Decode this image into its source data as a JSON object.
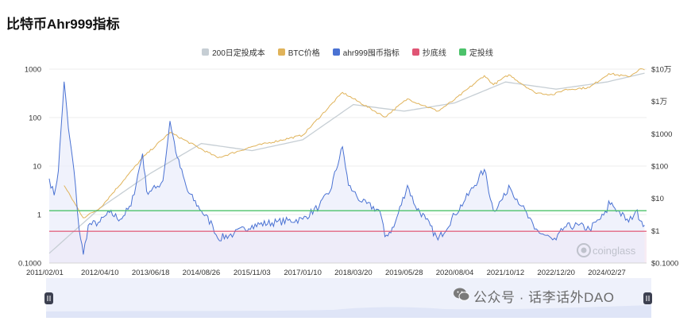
{
  "page": {
    "title": "比特币Ahr999指标"
  },
  "legend": [
    {
      "label": "200日定投成本",
      "color": "#c6ced4"
    },
    {
      "label": "BTC价格",
      "color": "#e0b35a"
    },
    {
      "label": "ahr999囤币指标",
      "color": "#4a72d3"
    },
    {
      "label": "抄底线",
      "color": "#e05575"
    },
    {
      "label": "定投线",
      "color": "#4cc26a"
    }
  ],
  "watermark": {
    "text": "公众号 · 话李话外DAO",
    "logo": "coinglass"
  },
  "colors": {
    "ahr": "#4a72d3",
    "ahr_fill": "#e9ecfb",
    "btc": "#e0b35a",
    "cost": "#c6ced4",
    "bottom": "#e05575",
    "dca": "#4cc26a",
    "bottom_band": "#f8ecf4",
    "navigator": "#eef1fb"
  },
  "chart_data": {
    "type": "line",
    "x_tick_labels": [
      "2011/02/01",
      "2012/04/10",
      "2013/06/18",
      "2014/08/26",
      "2015/11/03",
      "2017/01/10",
      "2018/03/20",
      "2019/05/28",
      "2020/08/04",
      "2021/10/12",
      "2022/12/20",
      "2024/02/27"
    ],
    "y_left": {
      "scale": "log",
      "range": [
        0.1,
        1000
      ],
      "tick_labels": [
        "0.1000",
        "1",
        "10",
        "100",
        "1000"
      ]
    },
    "y_right": {
      "scale": "log",
      "range": [
        0.1,
        100000
      ],
      "tick_labels": [
        "$0.1000",
        "$1",
        "$10",
        "$100",
        "$1000",
        "$1万",
        "$10万"
      ]
    },
    "reference_lines": {
      "抄底线": 0.45,
      "定投线": 1.2
    },
    "series": [
      {
        "name": "ahr999囤币指标",
        "axis": "left",
        "points": [
          [
            "2011/02/01",
            5.5
          ],
          [
            "2011/03/15",
            2.5
          ],
          [
            "2011/04/20",
            8
          ],
          [
            "2011/06/08",
            550
          ],
          [
            "2011/07/15",
            60
          ],
          [
            "2011/09/01",
            8
          ],
          [
            "2011/10/15",
            0.5
          ],
          [
            "2011/11/20",
            0.15
          ],
          [
            "2012/01/01",
            0.6
          ],
          [
            "2012/04/10",
            0.7
          ],
          [
            "2012/07/01",
            1.1
          ],
          [
            "2012/10/01",
            0.8
          ],
          [
            "2013/01/01",
            1.5
          ],
          [
            "2013/04/10",
            18
          ],
          [
            "2013/05/15",
            3
          ],
          [
            "2013/08/01",
            3.5
          ],
          [
            "2013/10/01",
            5
          ],
          [
            "2013/12/01",
            85
          ],
          [
            "2014/02/01",
            15
          ],
          [
            "2014/05/01",
            3
          ],
          [
            "2014/08/26",
            1.2
          ],
          [
            "2014/12/01",
            0.6
          ],
          [
            "2015/01/15",
            0.32
          ],
          [
            "2015/06/01",
            0.4
          ],
          [
            "2015/11/03",
            0.6
          ],
          [
            "2016/06/01",
            0.7
          ],
          [
            "2017/01/10",
            0.8
          ],
          [
            "2017/06/01",
            1.5
          ],
          [
            "2017/09/01",
            3
          ],
          [
            "2017/12/17",
            25
          ],
          [
            "2018/02/06",
            4
          ],
          [
            "2018/03/20",
            3
          ],
          [
            "2018/06/01",
            1.8
          ],
          [
            "2018/11/01",
            1.2
          ],
          [
            "2018/12/15",
            0.35
          ],
          [
            "2019/03/01",
            0.55
          ],
          [
            "2019/06/26",
            4
          ],
          [
            "2019/09/01",
            1.5
          ],
          [
            "2019/12/01",
            0.8
          ],
          [
            "2020/03/13",
            0.3
          ],
          [
            "2020/08/04",
            1.0
          ],
          [
            "2020/11/01",
            2
          ],
          [
            "2021/04/14",
            8.5
          ],
          [
            "2021/07/01",
            1.2
          ],
          [
            "2021/10/12",
            2.5
          ],
          [
            "2021/11/10",
            4
          ],
          [
            "2022/03/01",
            1.5
          ],
          [
            "2022/06/18",
            0.5
          ],
          [
            "2022/11/21",
            0.3
          ],
          [
            "2022/12/20",
            0.3
          ],
          [
            "2023/03/01",
            0.55
          ],
          [
            "2023/07/01",
            0.6
          ],
          [
            "2023/10/01",
            0.5
          ],
          [
            "2024/02/27",
            1.1
          ],
          [
            "2024/03/14",
            1.9
          ],
          [
            "2024/06/01",
            1.2
          ],
          [
            "2024/09/01",
            0.7
          ],
          [
            "2024/11/01",
            1.2
          ],
          [
            "2025/01/15",
            0.6
          ]
        ]
      },
      {
        "name": "BTC价格",
        "axis": "right",
        "points": [
          [
            "2011/06/08",
            25
          ],
          [
            "2011/11/20",
            2.5
          ],
          [
            "2012/04/10",
            5
          ],
          [
            "2013/04/10",
            180
          ],
          [
            "2013/12/01",
            1100
          ],
          [
            "2015/01/15",
            180
          ],
          [
            "2015/11/03",
            400
          ],
          [
            "2017/01/10",
            900
          ],
          [
            "2017/12/17",
            19000
          ],
          [
            "2018/12/15",
            3300
          ],
          [
            "2019/06/26",
            12000
          ],
          [
            "2020/03/13",
            5000
          ],
          [
            "2020/08/04",
            11500
          ],
          [
            "2021/04/14",
            63000
          ],
          [
            "2021/07/01",
            33000
          ],
          [
            "2021/11/10",
            67000
          ],
          [
            "2022/06/18",
            19000
          ],
          [
            "2022/11/21",
            16000
          ],
          [
            "2023/03/01",
            23000
          ],
          [
            "2023/10/01",
            27000
          ],
          [
            "2024/03/14",
            73000
          ],
          [
            "2024/09/01",
            58000
          ],
          [
            "2024/12/15",
            103000
          ],
          [
            "2025/01/15",
            95000
          ]
        ]
      },
      {
        "name": "200日定投成本",
        "axis": "right",
        "points": [
          [
            "2011/02/01",
            0.2
          ],
          [
            "2012/04/10",
            5
          ],
          [
            "2013/06/18",
            60
          ],
          [
            "2014/08/26",
            500
          ],
          [
            "2015/11/03",
            300
          ],
          [
            "2017/01/10",
            650
          ],
          [
            "2018/03/20",
            8000
          ],
          [
            "2019/05/28",
            5000
          ],
          [
            "2020/08/04",
            9000
          ],
          [
            "2021/10/12",
            40000
          ],
          [
            "2022/12/20",
            24000
          ],
          [
            "2024/02/27",
            40000
          ],
          [
            "2025/01/15",
            75000
          ]
        ]
      }
    ]
  }
}
